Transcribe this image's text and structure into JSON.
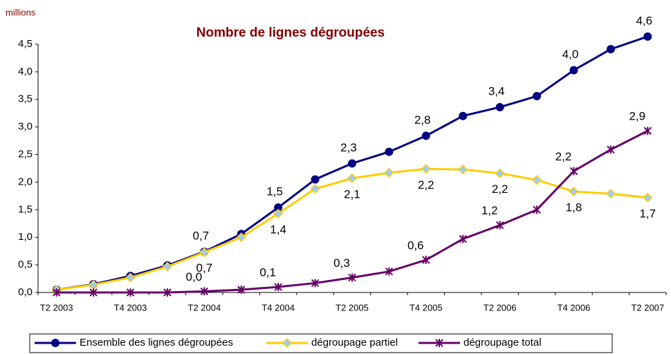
{
  "chart_data": {
    "type": "line",
    "title": "Nombre de lignes dégroupées",
    "y_label": "millions",
    "categories": [
      "T2 2003",
      null,
      "T4 2003",
      null,
      "T2 2004",
      null,
      "T4 2004",
      null,
      "T2 2005",
      null,
      "T4 2005",
      null,
      "T2 2006",
      null,
      "T4 2006",
      null,
      "T2 2007"
    ],
    "ylim": [
      0,
      4.5
    ],
    "yticks": [
      {
        "value": 0,
        "label": "0,0"
      },
      {
        "value": 0.5,
        "label": "0,5"
      },
      {
        "value": 1,
        "label": "1,0"
      },
      {
        "value": 1.5,
        "label": "1,5"
      },
      {
        "value": 2,
        "label": "2,0"
      },
      {
        "value": 2.5,
        "label": "2,5"
      },
      {
        "value": 3,
        "label": "3,0"
      },
      {
        "value": 3.5,
        "label": "3,5"
      },
      {
        "value": 4,
        "label": "4,0"
      },
      {
        "value": 4.5,
        "label": "4,5"
      }
    ],
    "grid": false,
    "legend": "bottom",
    "series": [
      {
        "name": "Ensemble des lignes dégroupées",
        "color": "#000080",
        "marker": "circle",
        "marker_fill": "#000080",
        "values": [
          0.05,
          0.15,
          0.3,
          0.49,
          0.74,
          1.06,
          1.54,
          2.05,
          2.34,
          2.55,
          2.84,
          3.2,
          3.36,
          3.56,
          4.03,
          4.41,
          4.64
        ],
        "value_labels": [
          null,
          null,
          null,
          null,
          "0,7",
          null,
          "1,5",
          null,
          "2,3",
          null,
          "2,8",
          null,
          "3,4",
          null,
          "4,0",
          null,
          "4,6"
        ]
      },
      {
        "name": "dégroupage partiel",
        "color": "#FFCC00",
        "marker": "diamond",
        "marker_fill": "#99CCFF",
        "values": [
          0.05,
          0.14,
          0.27,
          0.47,
          0.73,
          1.0,
          1.43,
          1.88,
          2.07,
          2.17,
          2.24,
          2.23,
          2.16,
          2.04,
          1.83,
          1.79,
          1.72
        ],
        "value_labels": [
          null,
          null,
          null,
          null,
          "0,7",
          null,
          "1,4",
          null,
          "2,1",
          null,
          "2,2",
          null,
          "2,2",
          null,
          "1,8",
          null,
          "1,7"
        ]
      },
      {
        "name": "dégroupage total",
        "color": "#660066",
        "marker": "star",
        "marker_fill": "#660066",
        "values": [
          0,
          0,
          0,
          0,
          0.02,
          0.05,
          0.1,
          0.17,
          0.27,
          0.38,
          0.59,
          0.97,
          1.22,
          1.5,
          2.2,
          2.59,
          2.93
        ],
        "value_labels": [
          null,
          null,
          null,
          null,
          "0,0",
          null,
          "0,1",
          null,
          "0,3",
          null,
          "0,6",
          null,
          "1,2",
          null,
          "2,2",
          null,
          "2,9"
        ]
      }
    ]
  }
}
